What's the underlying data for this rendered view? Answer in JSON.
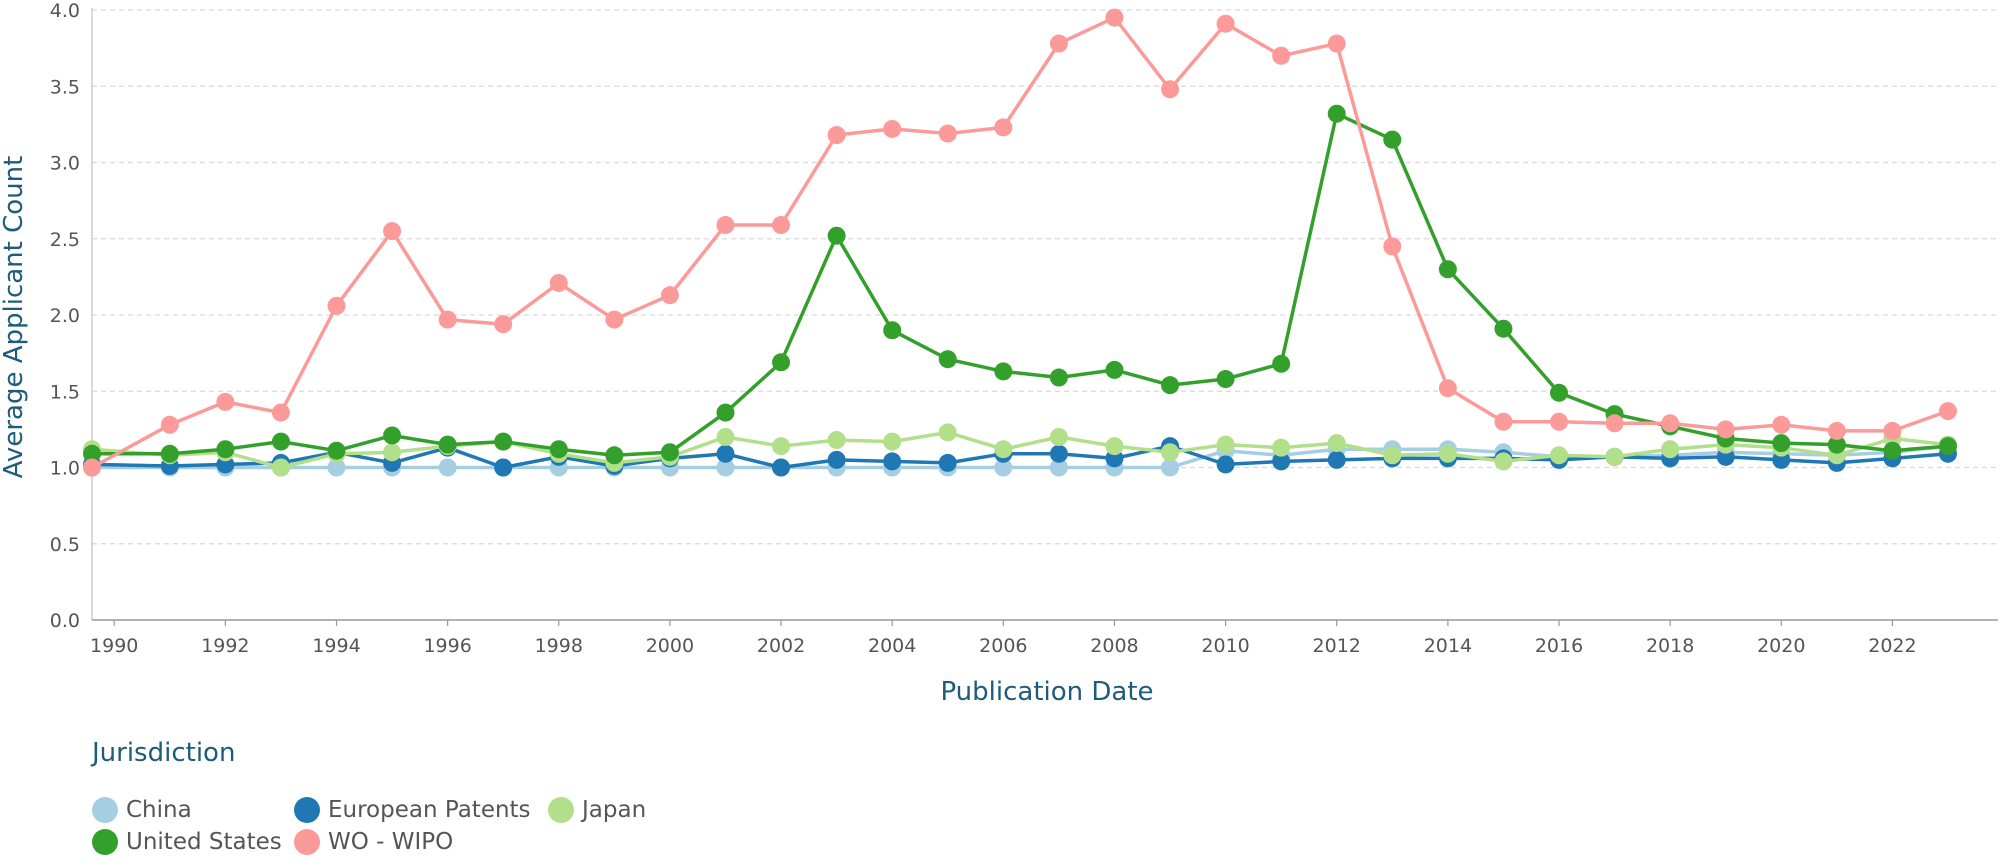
{
  "chart_data": {
    "type": "line",
    "xlabel": "Publication Date",
    "ylabel": "Average Applicant Count",
    "xlim": [
      1989.6,
      2023.9
    ],
    "ylim": [
      0,
      4
    ],
    "x_ticks": [
      "1990",
      "1992",
      "1994",
      "1996",
      "1998",
      "2000",
      "2002",
      "2004",
      "2006",
      "2008",
      "2010",
      "2012",
      "2014",
      "2016",
      "2018",
      "2020",
      "2022"
    ],
    "y_ticks": [
      "0.0",
      "0.5",
      "1.0",
      "1.5",
      "2.0",
      "2.5",
      "3.0",
      "3.5",
      "4.0"
    ],
    "grid": "horizontal dashed",
    "legend": {
      "title": "Jurisdiction",
      "position": "bottom-left",
      "rows": [
        [
          "China",
          "European Patents",
          "Japan"
        ],
        [
          "United States",
          "WO - WIPO"
        ]
      ]
    },
    "x": [
      1989.6,
      1991,
      1992,
      1993,
      1994,
      1995,
      1996,
      1997,
      1998,
      1999,
      2000,
      2001,
      2002,
      2003,
      2004,
      2005,
      2006,
      2007,
      2008,
      2009,
      2010,
      2011,
      2012,
      2013,
      2014,
      2015,
      2016,
      2017,
      2018,
      2019,
      2020,
      2021,
      2022,
      2023
    ],
    "series": [
      {
        "name": "China",
        "color": "#a6cee3",
        "values": [
          1.0,
          1.0,
          1.0,
          1.0,
          1.0,
          1.0,
          1.0,
          1.0,
          1.0,
          1.0,
          1.0,
          1.0,
          1.0,
          1.0,
          1.0,
          1.0,
          1.0,
          1.0,
          1.0,
          1.0,
          1.11,
          1.08,
          1.12,
          1.12,
          1.12,
          1.1,
          1.07,
          1.07,
          1.08,
          1.1,
          1.09,
          1.08,
          1.1,
          1.14
        ]
      },
      {
        "name": "European Patents",
        "color": "#1f78b4",
        "values": [
          1.02,
          1.01,
          1.02,
          1.03,
          1.1,
          1.03,
          1.13,
          1.0,
          1.07,
          1.01,
          1.06,
          1.09,
          1.0,
          1.05,
          1.04,
          1.03,
          1.09,
          1.09,
          1.06,
          1.14,
          1.02,
          1.04,
          1.05,
          1.06,
          1.06,
          1.06,
          1.05,
          1.07,
          1.06,
          1.07,
          1.05,
          1.03,
          1.06,
          1.09
        ]
      },
      {
        "name": "Japan",
        "color": "#b2df8a",
        "values": [
          1.12,
          1.08,
          1.1,
          1.0,
          1.09,
          1.1,
          1.14,
          1.17,
          1.09,
          1.03,
          1.07,
          1.2,
          1.14,
          1.18,
          1.17,
          1.23,
          1.12,
          1.2,
          1.14,
          1.1,
          1.15,
          1.13,
          1.16,
          1.08,
          1.09,
          1.04,
          1.08,
          1.07,
          1.12,
          1.15,
          1.13,
          1.08,
          1.19,
          1.15
        ]
      },
      {
        "name": "United States",
        "color": "#33a02c",
        "values": [
          1.09,
          1.09,
          1.12,
          1.17,
          1.11,
          1.21,
          1.15,
          1.17,
          1.12,
          1.08,
          1.1,
          1.36,
          1.69,
          2.52,
          1.9,
          1.71,
          1.63,
          1.59,
          1.64,
          1.54,
          1.58,
          1.68,
          3.32,
          3.15,
          2.3,
          1.91,
          1.49,
          1.35,
          1.27,
          1.19,
          1.16,
          1.15,
          1.11,
          1.14
        ]
      },
      {
        "name": "WO - WIPO",
        "color": "#fb9a99",
        "values": [
          1.0,
          1.28,
          1.43,
          1.36,
          2.06,
          2.55,
          1.97,
          1.94,
          2.21,
          1.97,
          2.13,
          2.59,
          2.59,
          3.18,
          3.22,
          3.19,
          3.23,
          3.78,
          3.95,
          3.48,
          3.91,
          3.7,
          3.78,
          2.45,
          1.52,
          1.3,
          1.3,
          1.29,
          1.29,
          1.25,
          1.28,
          1.24,
          1.24,
          1.37
        ]
      }
    ]
  }
}
